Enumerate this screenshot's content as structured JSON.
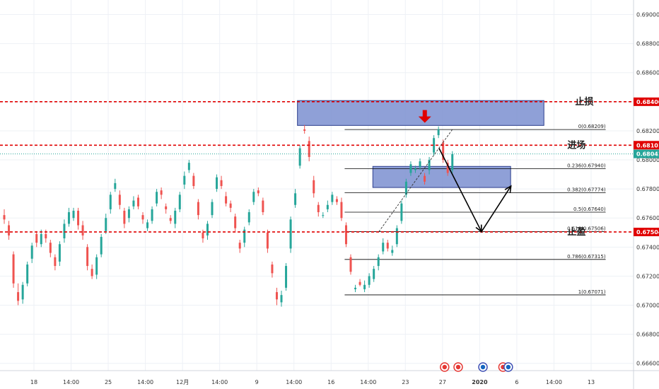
{
  "chart_data": {
    "type": "candlestick",
    "ylim": [
      0.6655,
      0.691
    ],
    "y_ticks": [
      "0.69000",
      "0.68800",
      "0.68600",
      "0.68400",
      "0.68200",
      "0.68000",
      "0.67800",
      "0.67600",
      "0.67400",
      "0.67200",
      "0.67000",
      "0.66800",
      "0.66600"
    ],
    "x_ticks": [
      "18",
      "14:00",
      "25",
      "14:00",
      "12月",
      "14:00",
      "9",
      "14:00",
      "16",
      "14:00",
      "23",
      "27",
      "2020",
      "6",
      "14:00",
      "13"
    ],
    "grid": true,
    "legend": "none",
    "colors": {
      "up": "#26a69a",
      "down": "#ef5350",
      "level": "#e00000",
      "zone": "#7b8fd0",
      "zone_border": "#2c3e8c",
      "fib": "#000000"
    },
    "horizontal_levels": [
      {
        "label": "止损",
        "value": 0.684,
        "price_label": "0.68400"
      },
      {
        "label": "进场",
        "value": 0.68101,
        "price_label": "0.68101"
      },
      {
        "label": "止盈",
        "value": 0.67504,
        "price_label": "0.67504"
      }
    ],
    "current_price": {
      "value": 0.68041,
      "price_label": "0.68041",
      "color": "#26a69a"
    },
    "fib_levels": [
      {
        "label": "0(0.68209)",
        "value": 0.68209
      },
      {
        "label": "0.236(0.67940)",
        "value": 0.6794
      },
      {
        "label": "0.382(0.67774)",
        "value": 0.67774
      },
      {
        "label": "0.5(0.67640)",
        "value": 0.6764
      },
      {
        "label": "0.618(0.67506)",
        "value": 0.67506
      },
      {
        "label": "0.786(0.67315)",
        "value": 0.67315
      },
      {
        "label": "1(0.67071)",
        "value": 0.67071
      }
    ],
    "zones": [
      {
        "x_from": 0.4695,
        "x_to": 0.8585,
        "y_from": 0.68237,
        "y_to": 0.68408
      },
      {
        "x_from": 0.5885,
        "x_to": 0.806,
        "y_from": 0.6781,
        "y_to": 0.67955
      }
    ],
    "candles": [
      [
        0.6762,
        0.6759,
        0.6766,
        0.6756
      ],
      [
        0.6755,
        0.6748,
        0.6758,
        0.6745
      ],
      [
        0.6735,
        0.6715,
        0.6737,
        0.6712
      ],
      [
        0.6709,
        0.6703,
        0.6715,
        0.67
      ],
      [
        0.6704,
        0.6714,
        0.6716,
        0.6701
      ],
      [
        0.6715,
        0.6728,
        0.673,
        0.6713
      ],
      [
        0.6732,
        0.6741,
        0.6743,
        0.6729
      ],
      [
        0.6749,
        0.6743,
        0.6751,
        0.674
      ],
      [
        0.6742,
        0.6749,
        0.6752,
        0.674
      ],
      [
        0.6749,
        0.6746,
        0.6752,
        0.6743
      ],
      [
        0.6743,
        0.6736,
        0.6745,
        0.6733
      ],
      [
        0.6733,
        0.6727,
        0.6735,
        0.6724
      ],
      [
        0.673,
        0.6742,
        0.6744,
        0.6727
      ],
      [
        0.6746,
        0.6756,
        0.6759,
        0.6743
      ],
      [
        0.6756,
        0.6764,
        0.6767,
        0.6754
      ],
      [
        0.676,
        0.6765,
        0.6767,
        0.6758
      ],
      [
        0.6765,
        0.6755,
        0.6767,
        0.6752
      ],
      [
        0.6755,
        0.6748,
        0.6758,
        0.6745
      ],
      [
        0.674,
        0.6727,
        0.6742,
        0.6724
      ],
      [
        0.6725,
        0.672,
        0.6728,
        0.6718
      ],
      [
        0.6721,
        0.6733,
        0.6735,
        0.6718
      ],
      [
        0.6735,
        0.6747,
        0.6749,
        0.6733
      ],
      [
        0.6751,
        0.676,
        0.6763,
        0.6749
      ],
      [
        0.6766,
        0.6776,
        0.6778,
        0.6763
      ],
      [
        0.678,
        0.6784,
        0.6787,
        0.6778
      ],
      [
        0.6776,
        0.6769,
        0.6779,
        0.6766
      ],
      [
        0.6765,
        0.6756,
        0.6767,
        0.6753
      ],
      [
        0.676,
        0.6766,
        0.6768,
        0.6757
      ],
      [
        0.6768,
        0.6772,
        0.6775,
        0.6766
      ],
      [
        0.6774,
        0.6768,
        0.6776,
        0.6766
      ],
      [
        0.6762,
        0.6759,
        0.6764,
        0.6756
      ],
      [
        0.6753,
        0.6757,
        0.6759,
        0.6751
      ],
      [
        0.6758,
        0.6766,
        0.6768,
        0.6756
      ],
      [
        0.677,
        0.6778,
        0.678,
        0.6768
      ],
      [
        0.6779,
        0.6776,
        0.6781,
        0.6773
      ],
      [
        0.6768,
        0.6766,
        0.677,
        0.6763
      ],
      [
        0.676,
        0.6758,
        0.6762,
        0.6756
      ],
      [
        0.6756,
        0.6765,
        0.6767,
        0.6753
      ],
      [
        0.6766,
        0.6776,
        0.6778,
        0.6764
      ],
      [
        0.6783,
        0.6789,
        0.6792,
        0.678
      ],
      [
        0.6793,
        0.6798,
        0.68,
        0.6791
      ],
      [
        0.6789,
        0.6782,
        0.6791,
        0.678
      ],
      [
        0.6771,
        0.6762,
        0.6773,
        0.6759
      ],
      [
        0.675,
        0.6746,
        0.6752,
        0.6743
      ],
      [
        0.6748,
        0.6756,
        0.6758,
        0.6745
      ],
      [
        0.6762,
        0.6771,
        0.6773,
        0.676
      ],
      [
        0.678,
        0.6788,
        0.679,
        0.6778
      ],
      [
        0.6786,
        0.6782,
        0.6789,
        0.678
      ],
      [
        0.6775,
        0.677,
        0.6778,
        0.6768
      ],
      [
        0.677,
        0.6767,
        0.6772,
        0.6764
      ],
      [
        0.6761,
        0.6753,
        0.6763,
        0.675
      ],
      [
        0.6743,
        0.6739,
        0.6745,
        0.6736
      ],
      [
        0.6743,
        0.6752,
        0.6754,
        0.674
      ],
      [
        0.6757,
        0.6764,
        0.6766,
        0.6755
      ],
      [
        0.6771,
        0.6778,
        0.678,
        0.6769
      ],
      [
        0.6779,
        0.6777,
        0.6781,
        0.6775
      ],
      [
        0.6772,
        0.6764,
        0.6774,
        0.6762
      ],
      [
        0.675,
        0.6739,
        0.6752,
        0.6736
      ],
      [
        0.6728,
        0.6722,
        0.673,
        0.6719
      ],
      [
        0.6709,
        0.6704,
        0.6712,
        0.67
      ],
      [
        0.6702,
        0.6707,
        0.671,
        0.6699
      ],
      [
        0.6712,
        0.6727,
        0.6729,
        0.671
      ],
      [
        0.6739,
        0.6759,
        0.6761,
        0.6736
      ],
      [
        0.6769,
        0.6777,
        0.678,
        0.6767
      ],
      [
        0.6796,
        0.6808,
        0.681,
        0.6794
      ],
      [
        0.6821,
        0.682,
        0.6824,
        0.6818
      ],
      [
        0.6813,
        0.6802,
        0.6816,
        0.6799
      ],
      [
        0.6786,
        0.6777,
        0.6789,
        0.6774
      ],
      [
        0.6769,
        0.6764,
        0.6771,
        0.6761
      ],
      [
        0.6762,
        0.6762,
        0.6764,
        0.676
      ],
      [
        0.6766,
        0.6769,
        0.6772,
        0.6764
      ],
      [
        0.6771,
        0.6776,
        0.6778,
        0.6769
      ],
      [
        0.6773,
        0.6771,
        0.6775,
        0.6769
      ],
      [
        0.6771,
        0.676,
        0.6774,
        0.6758
      ],
      [
        0.6755,
        0.6742,
        0.6757,
        0.674
      ],
      [
        0.6733,
        0.6723,
        0.6735,
        0.6721
      ],
      [
        0.6711,
        0.6712,
        0.6714,
        0.6709
      ],
      [
        0.6716,
        0.6714,
        0.6718,
        0.6713
      ],
      [
        0.6711,
        0.6714,
        0.6717,
        0.6709
      ],
      [
        0.6714,
        0.672,
        0.6722,
        0.6712
      ],
      [
        0.6718,
        0.6725,
        0.6727,
        0.6716
      ],
      [
        0.6727,
        0.6733,
        0.6735,
        0.6724
      ],
      [
        0.6737,
        0.6743,
        0.6746,
        0.6735
      ],
      [
        0.6743,
        0.6739,
        0.6745,
        0.6737
      ],
      [
        0.6736,
        0.6738,
        0.6741,
        0.6734
      ],
      [
        0.6742,
        0.6753,
        0.6755,
        0.674
      ],
      [
        0.6758,
        0.677,
        0.6772,
        0.6756
      ],
      [
        0.6776,
        0.6785,
        0.6787,
        0.6774
      ],
      [
        0.6791,
        0.6797,
        0.6799,
        0.6789
      ],
      [
        0.6793,
        0.6794,
        0.6796,
        0.6791
      ],
      [
        0.6795,
        0.6799,
        0.6801,
        0.6793
      ],
      [
        0.6789,
        0.6785,
        0.6791,
        0.6783
      ],
      [
        0.6793,
        0.68,
        0.6802,
        0.679
      ],
      [
        0.6805,
        0.6815,
        0.6817,
        0.6803
      ],
      [
        0.6817,
        0.6821,
        0.6823,
        0.6815
      ],
      [
        0.6812,
        0.68,
        0.6814,
        0.6798
      ],
      [
        0.6798,
        0.6791,
        0.68,
        0.6789
      ],
      [
        0.6793,
        0.6804,
        0.6806,
        0.6791
      ]
    ],
    "annotations": {
      "dashed_trendline": {
        "from_x": 0.598,
        "from_y": 0.67506,
        "to_x": 0.714,
        "to_y": 0.68209
      },
      "projection_path": [
        [
          0.693,
          0.6808
        ],
        [
          0.76,
          0.67506
        ],
        [
          0.8065,
          0.6782
        ]
      ],
      "sell_marker": {
        "x": 0.6705,
        "y": 0.68255
      }
    },
    "event_icons": [
      {
        "x": 0.7018,
        "kind": "red"
      },
      {
        "x": 0.7232,
        "kind": "red"
      },
      {
        "x": 0.7623,
        "kind": "flag"
      },
      {
        "x": 0.794,
        "kind": "red"
      },
      {
        "x": 0.8023,
        "kind": "flag"
      }
    ]
  }
}
